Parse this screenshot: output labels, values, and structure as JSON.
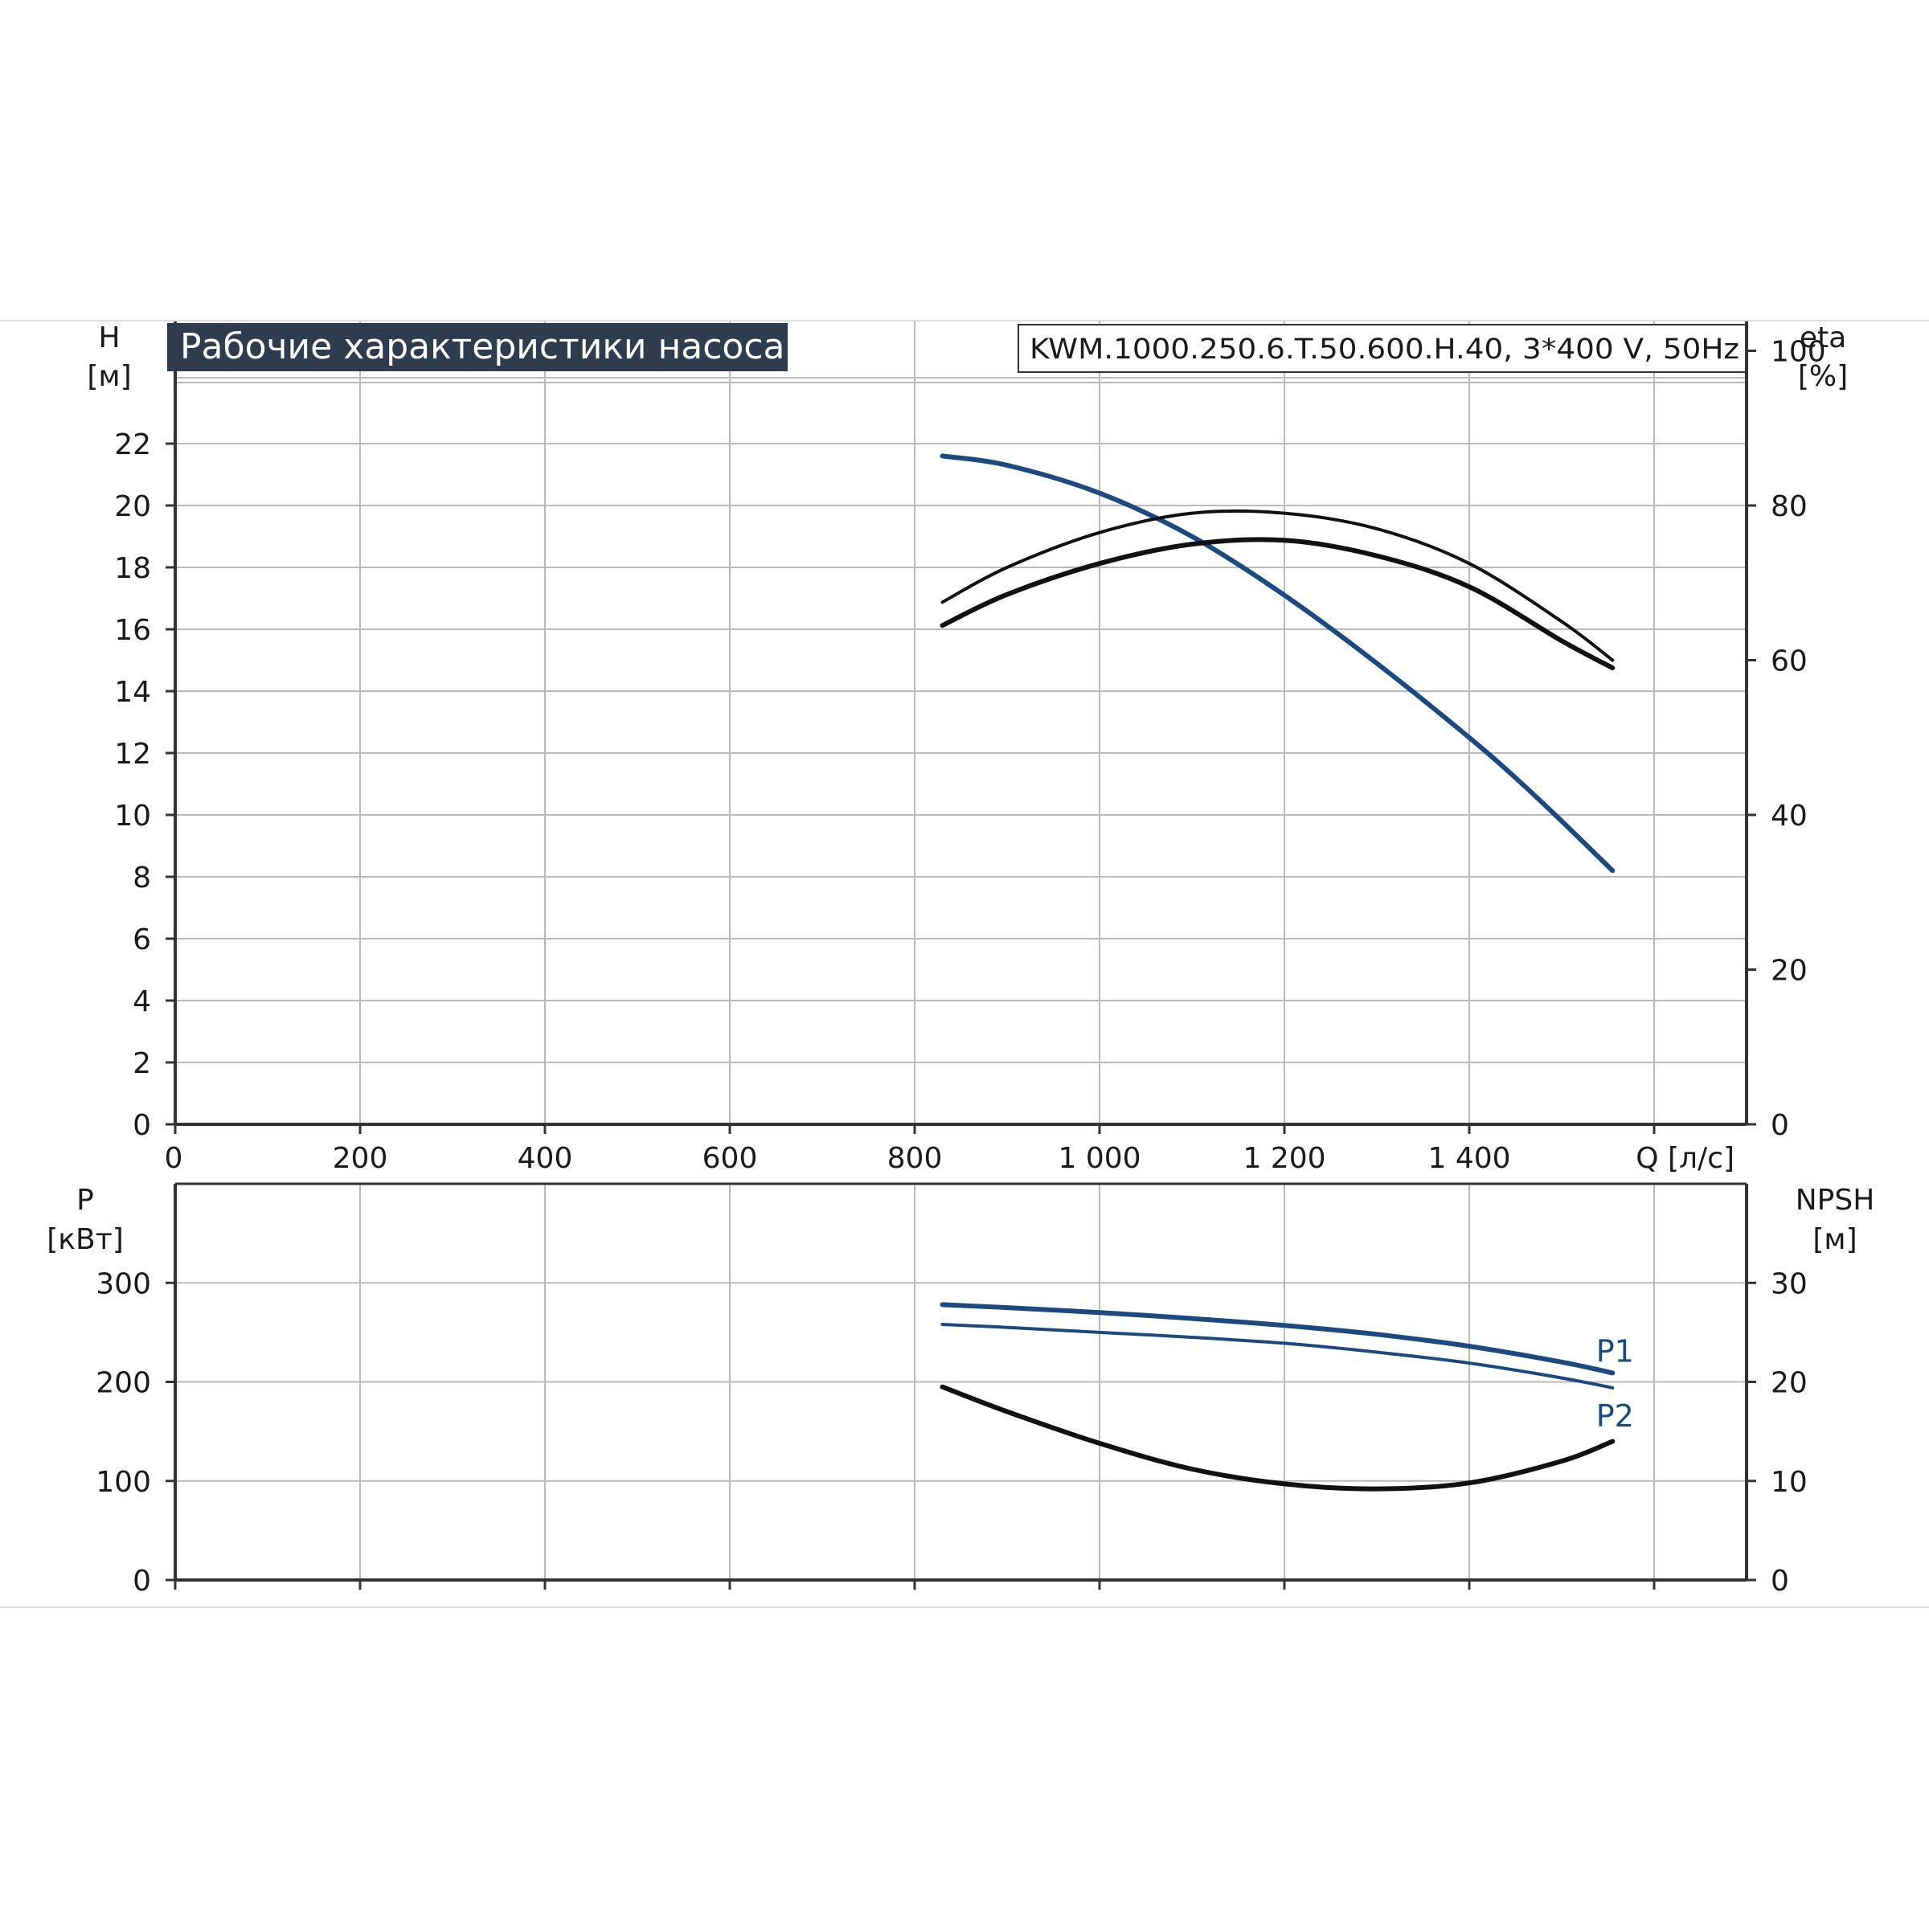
{
  "title": "Рабочие характеристики насоса",
  "model_label": "KWM.1000.250.6.T.50.600.H.40, 3*400 V, 50Hz",
  "colors": {
    "title_bg": "#2f3c4e",
    "blue": "#1c4a80",
    "black": "#111111",
    "grid": "#b9b9b9"
  },
  "chart_data": [
    {
      "type": "line",
      "name_panel": "head-efficiency",
      "xlabel": "Q [л/с]",
      "x_tick_labels": [
        "0",
        "200",
        "400",
        "600",
        "800",
        "1 000",
        "1 200",
        "1 400"
      ],
      "xlim": [
        0,
        1700
      ],
      "left_axis": {
        "label_top": "H",
        "label_unit": "[м]",
        "ylim": [
          0,
          24
        ],
        "ticks": [
          0,
          2,
          4,
          6,
          8,
          10,
          12,
          14,
          16,
          18,
          20,
          22
        ]
      },
      "right_axis": {
        "label_top": "eta",
        "label_unit": "[%]",
        "ylim": [
          0,
          96
        ],
        "ticks": [
          0,
          20,
          40,
          60,
          80,
          100
        ]
      },
      "grid": true,
      "series": [
        {
          "axis": "left",
          "color": "blue",
          "x": [
            830,
            900,
            1000,
            1100,
            1200,
            1300,
            1400,
            1450,
            1500,
            1555
          ],
          "y": [
            21.6,
            21.3,
            20.4,
            19.0,
            17.1,
            14.9,
            12.5,
            11.2,
            9.8,
            8.2
          ]
        },
        {
          "axis": "right",
          "color": "black",
          "x": [
            830,
            900,
            1000,
            1100,
            1200,
            1300,
            1400,
            1500,
            1555
          ],
          "y": [
            67.5,
            72.0,
            76.5,
            79.0,
            79.0,
            77.0,
            72.5,
            65.0,
            60.0
          ]
        },
        {
          "axis": "right",
          "color": "black",
          "x": [
            830,
            900,
            1000,
            1100,
            1200,
            1300,
            1400,
            1500,
            1555
          ],
          "y": [
            64.5,
            68.5,
            72.5,
            75.0,
            75.5,
            73.5,
            69.5,
            62.5,
            59.0
          ]
        }
      ]
    },
    {
      "type": "line",
      "name_panel": "power-npsh",
      "xlim": [
        0,
        1700
      ],
      "left_axis": {
        "label_top": "P",
        "label_unit": "[кВт]",
        "ylim": [
          0,
          400
        ],
        "ticks": [
          0,
          100,
          200,
          300
        ]
      },
      "right_axis": {
        "label_top": "NPSH",
        "label_unit": "[м]",
        "ylim": [
          0,
          40
        ],
        "ticks": [
          0,
          10,
          20,
          30
        ]
      },
      "grid": true,
      "series": [
        {
          "name": "P1",
          "axis": "left",
          "color": "blue",
          "x": [
            830,
            900,
            1000,
            1100,
            1200,
            1300,
            1400,
            1500,
            1555
          ],
          "y": [
            278,
            275,
            270,
            264,
            257,
            248,
            236,
            220,
            209
          ]
        },
        {
          "name": "P2",
          "axis": "left",
          "color": "blue",
          "x": [
            830,
            900,
            1000,
            1100,
            1200,
            1300,
            1400,
            1500,
            1555
          ],
          "y": [
            258,
            255,
            250,
            245,
            239,
            230,
            219,
            204,
            194
          ]
        },
        {
          "axis": "right",
          "color": "black",
          "x": [
            830,
            900,
            1000,
            1100,
            1200,
            1300,
            1400,
            1500,
            1555
          ],
          "y": [
            19.5,
            17.0,
            13.8,
            11.2,
            9.7,
            9.2,
            9.8,
            12.0,
            14.0
          ]
        }
      ]
    }
  ]
}
